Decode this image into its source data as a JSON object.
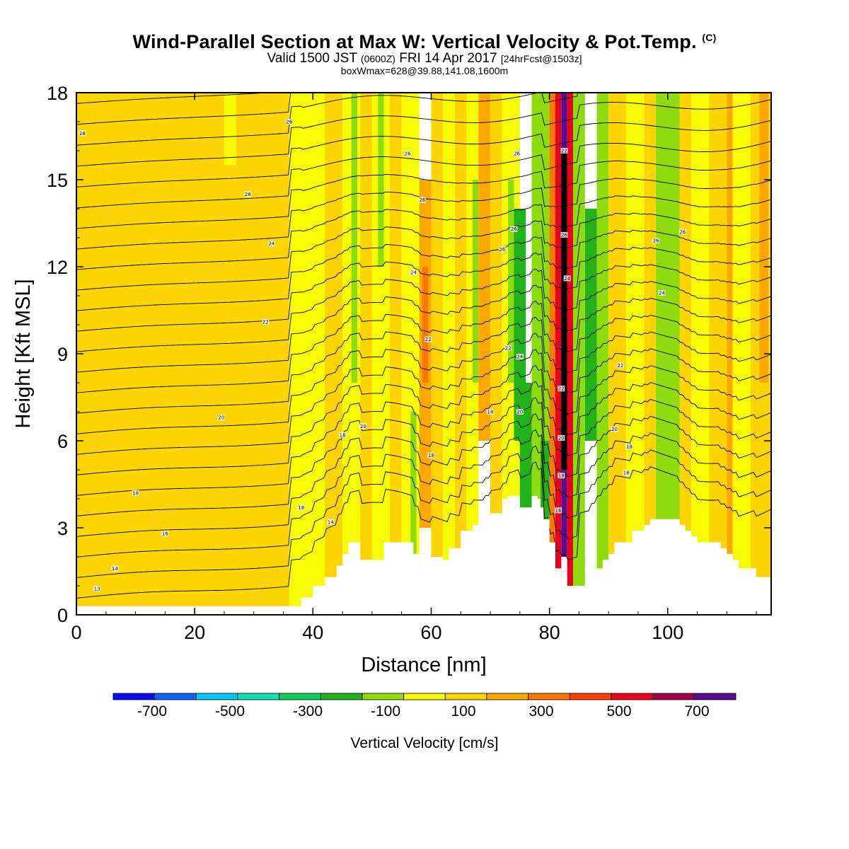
{
  "header": {
    "title_main": "Wind-Parallel Section at Max W: Vertical Velocity & Pot.Temp.",
    "title_mark": "(C)",
    "valid_prefix": "Valid 1500 JST",
    "valid_z": "(0600Z)",
    "valid_date": "FRI 14 Apr 2017",
    "valid_fcst": "[24hrFcst@1503z]",
    "box_info": "boxWmax=628@39.88,141.08,1600m"
  },
  "chart_data": {
    "type": "heatmap",
    "xlabel": "Distance [nm]",
    "ylabel": "Height [Kft MSL]",
    "xlim": [
      0,
      117.5
    ],
    "ylim": [
      0,
      18
    ],
    "x_ticks": [
      0,
      20,
      40,
      60,
      80,
      100
    ],
    "y_ticks": [
      0,
      3,
      6,
      9,
      12,
      15,
      18
    ],
    "colorbar": {
      "title": "Vertical Velocity [cm/s]",
      "bounds": [
        -800,
        -700,
        -600,
        -500,
        -400,
        -300,
        -200,
        -100,
        0,
        100,
        200,
        300,
        400,
        500,
        600,
        700,
        800
      ],
      "colors": [
        "#0a0afa",
        "#0b64ff",
        "#05c7ff",
        "#11e0b6",
        "#0dcd5c",
        "#22b21b",
        "#8fdc0e",
        "#f7fc00",
        "#fcd400",
        "#fca800",
        "#fc7800",
        "#fc3e00",
        "#e8001e",
        "#9e0046",
        "#5a0a8c"
      ],
      "labels": [
        "-700",
        "-500",
        "-300",
        "-100",
        "100",
        "300",
        "500",
        "700"
      ],
      "label_values": [
        -700,
        -500,
        -300,
        -100,
        100,
        300,
        500,
        700
      ]
    },
    "terrain": {
      "x": [
        0,
        36,
        38,
        40,
        42,
        44,
        45,
        46,
        47,
        48,
        49,
        50,
        52,
        53,
        54,
        56,
        57,
        58,
        59,
        60,
        61,
        62,
        63,
        64,
        65,
        66,
        67,
        68,
        69,
        70,
        71,
        72,
        73,
        74,
        75,
        76,
        77,
        78,
        79,
        80,
        81,
        82,
        83,
        84,
        85,
        86,
        87,
        88,
        89,
        90,
        91,
        92,
        93,
        94,
        95,
        96,
        97,
        98,
        100,
        102,
        103,
        104,
        105,
        106,
        107,
        108,
        109,
        110,
        111,
        112,
        113,
        114,
        115,
        116,
        117.5
      ],
      "y": [
        0.3,
        0.3,
        0.6,
        1.0,
        1.3,
        1.7,
        2.1,
        2.5,
        2.5,
        1.9,
        1.9,
        1.9,
        2.5,
        2.5,
        2.5,
        2.5,
        2.1,
        1.6,
        1.6,
        1.9,
        1.9,
        1.9,
        2.3,
        2.3,
        2.9,
        2.9,
        3.1,
        3.1,
        3.3,
        3.5,
        3.5,
        3.7,
        4.1,
        4.1,
        3.7,
        3.7,
        4.1,
        3.7,
        3.3,
        2.5,
        1.6,
        1.3,
        1.0,
        1.0,
        1.0,
        1.0,
        1.3,
        1.6,
        1.9,
        2.1,
        2.5,
        2.5,
        2.5,
        2.9,
        2.9,
        3.1,
        3.3,
        3.3,
        3.3,
        3.1,
        2.9,
        2.7,
        2.5,
        2.5,
        2.5,
        2.5,
        2.3,
        2.1,
        1.9,
        1.6,
        1.6,
        1.6,
        1.3,
        1.3,
        1.3
      ]
    },
    "cells": [
      {
        "x": [
          0,
          36
        ],
        "y": [
          0,
          18
        ],
        "w": 50
      },
      {
        "x": [
          25,
          27
        ],
        "y": [
          15.5,
          18
        ],
        "w": -100
      },
      {
        "x": [
          36,
          42
        ],
        "y": [
          0,
          18
        ],
        "w": -100
      },
      {
        "x": [
          42,
          45
        ],
        "y": [
          0,
          18
        ],
        "w": 50
      },
      {
        "x": [
          45,
          48
        ],
        "y": [
          0,
          18
        ],
        "w": -100
      },
      {
        "x": [
          46.5,
          47.5
        ],
        "y": [
          8,
          18
        ],
        "w": -200
      },
      {
        "x": [
          48,
          50
        ],
        "y": [
          0,
          18
        ],
        "w": 80
      },
      {
        "x": [
          50,
          53
        ],
        "y": [
          0,
          18
        ],
        "w": -100
      },
      {
        "x": [
          51,
          52
        ],
        "y": [
          12,
          18
        ],
        "w": -200
      },
      {
        "x": [
          53,
          55
        ],
        "y": [
          0,
          18
        ],
        "w": 80
      },
      {
        "x": [
          55,
          58
        ],
        "y": [
          0,
          18
        ],
        "w": -100
      },
      {
        "x": [
          56.5,
          57.5
        ],
        "y": [
          2,
          7
        ],
        "w": -200
      },
      {
        "x": [
          58,
          60
        ],
        "y": [
          3,
          15
        ],
        "w": 150
      },
      {
        "x": [
          58.5,
          59.5
        ],
        "y": [
          8,
          12
        ],
        "w": 250
      },
      {
        "x": [
          60,
          62
        ],
        "y": [
          2,
          18
        ],
        "w": 80
      },
      {
        "x": [
          62,
          64
        ],
        "y": [
          0,
          18
        ],
        "w": -100
      },
      {
        "x": [
          64,
          66
        ],
        "y": [
          0,
          18
        ],
        "w": 80
      },
      {
        "x": [
          66,
          68
        ],
        "y": [
          2,
          18
        ],
        "w": -100
      },
      {
        "x": [
          67,
          68
        ],
        "y": [
          8,
          15
        ],
        "w": -200
      },
      {
        "x": [
          68,
          70
        ],
        "y": [
          6,
          18
        ],
        "w": 120
      },
      {
        "x": [
          70,
          72
        ],
        "y": [
          0,
          18
        ],
        "w": 50
      },
      {
        "x": [
          72,
          75
        ],
        "y": [
          4,
          18
        ],
        "w": -100
      },
      {
        "x": [
          73,
          74
        ],
        "y": [
          8,
          15
        ],
        "w": -200
      },
      {
        "x": [
          74,
          76
        ],
        "y": [
          6,
          14
        ],
        "w": -300
      },
      {
        "x": [
          75,
          77
        ],
        "y": [
          3,
          8
        ],
        "w": -250
      },
      {
        "x": [
          77,
          80
        ],
        "y": [
          4,
          18
        ],
        "w": -150
      },
      {
        "x": [
          78.5,
          80
        ],
        "y": [
          2.5,
          6
        ],
        "w": -300
      },
      {
        "x": [
          80,
          81
        ],
        "y": [
          0,
          18
        ],
        "w": 200
      },
      {
        "x": [
          81,
          82
        ],
        "y": [
          0,
          18
        ],
        "w": 400
      },
      {
        "x": [
          82,
          83
        ],
        "y": [
          2,
          18
        ],
        "w": 650
      },
      {
        "x": [
          82,
          83
        ],
        "y": [
          5,
          16
        ],
        "w": 750
      },
      {
        "x": [
          83,
          84
        ],
        "y": [
          0,
          18
        ],
        "w": 400
      },
      {
        "x": [
          84,
          86
        ],
        "y": [
          0,
          18
        ],
        "w": -200
      },
      {
        "x": [
          86,
          88
        ],
        "y": [
          6,
          14
        ],
        "w": -300
      },
      {
        "x": [
          88,
          90
        ],
        "y": [
          0,
          18
        ],
        "w": -150
      },
      {
        "x": [
          90,
          93
        ],
        "y": [
          0,
          18
        ],
        "w": 50
      },
      {
        "x": [
          93,
          96
        ],
        "y": [
          0,
          18
        ],
        "w": -100
      },
      {
        "x": [
          96,
          98
        ],
        "y": [
          0,
          18
        ],
        "w": 80
      },
      {
        "x": [
          98,
          102
        ],
        "y": [
          0,
          18
        ],
        "w": -150
      },
      {
        "x": [
          102,
          104
        ],
        "y": [
          0,
          18
        ],
        "w": 80
      },
      {
        "x": [
          104,
          107
        ],
        "y": [
          0,
          18
        ],
        "w": -100
      },
      {
        "x": [
          107,
          110
        ],
        "y": [
          0,
          18
        ],
        "w": 80
      },
      {
        "x": [
          110,
          111
        ],
        "y": [
          0,
          18
        ],
        "w": 150
      },
      {
        "x": [
          111,
          114
        ],
        "y": [
          0,
          18
        ],
        "w": -100
      },
      {
        "x": [
          114,
          117.5
        ],
        "y": [
          0,
          18
        ],
        "w": 80
      },
      {
        "x": [
          115.5,
          117
        ],
        "y": [
          8,
          18
        ],
        "w": 150
      }
    ],
    "isentrope_labels": [
      {
        "text": "13",
        "x": 3.5,
        "y": 0.9
      },
      {
        "text": "14",
        "x": 6.5,
        "y": 1.6
      },
      {
        "text": "16",
        "x": 15,
        "y": 2.8
      },
      {
        "text": "18",
        "x": 10,
        "y": 4.2
      },
      {
        "text": "18",
        "x": 38,
        "y": 3.7
      },
      {
        "text": "14",
        "x": 43,
        "y": 3.2
      },
      {
        "text": "18",
        "x": 45,
        "y": 6.2
      },
      {
        "text": "20",
        "x": 24.5,
        "y": 6.8
      },
      {
        "text": "20",
        "x": 48.5,
        "y": 6.5
      },
      {
        "text": "18",
        "x": 60,
        "y": 5.5
      },
      {
        "text": "18",
        "x": 70,
        "y": 7.0
      },
      {
        "text": "20",
        "x": 75,
        "y": 7.0
      },
      {
        "text": "22",
        "x": 32,
        "y": 10.1
      },
      {
        "text": "24",
        "x": 33,
        "y": 12.8
      },
      {
        "text": "26",
        "x": 29,
        "y": 14.5
      },
      {
        "text": "26",
        "x": 36,
        "y": 17.0
      },
      {
        "text": "28",
        "x": 1,
        "y": 16.6
      },
      {
        "text": "26",
        "x": 56,
        "y": 15.9
      },
      {
        "text": "26",
        "x": 58.5,
        "y": 14.3
      },
      {
        "text": "24",
        "x": 57,
        "y": 11.8
      },
      {
        "text": "22",
        "x": 59.5,
        "y": 9.5
      },
      {
        "text": "26",
        "x": 74.5,
        "y": 15.9
      },
      {
        "text": "26",
        "x": 74,
        "y": 13.3
      },
      {
        "text": "26",
        "x": 72,
        "y": 12.6
      },
      {
        "text": "22",
        "x": 73,
        "y": 9.2
      },
      {
        "text": "24",
        "x": 75,
        "y": 8.9
      },
      {
        "text": "22",
        "x": 82,
        "y": 7.8
      },
      {
        "text": "22",
        "x": 82.5,
        "y": 16.0
      },
      {
        "text": "26",
        "x": 82.5,
        "y": 13.1
      },
      {
        "text": "24",
        "x": 83,
        "y": 11.6
      },
      {
        "text": "20",
        "x": 82,
        "y": 6.1
      },
      {
        "text": "18",
        "x": 82,
        "y": 4.8
      },
      {
        "text": "16",
        "x": 81.5,
        "y": 3.6
      },
      {
        "text": "20",
        "x": 91,
        "y": 6.4
      },
      {
        "text": "22",
        "x": 92,
        "y": 8.6
      },
      {
        "text": "18",
        "x": 93.5,
        "y": 5.8
      },
      {
        "text": "16",
        "x": 93,
        "y": 4.9
      },
      {
        "text": "24",
        "x": 99,
        "y": 11.1
      },
      {
        "text": "26",
        "x": 98,
        "y": 12.9
      },
      {
        "text": "26",
        "x": 102.5,
        "y": 13.2
      }
    ]
  }
}
